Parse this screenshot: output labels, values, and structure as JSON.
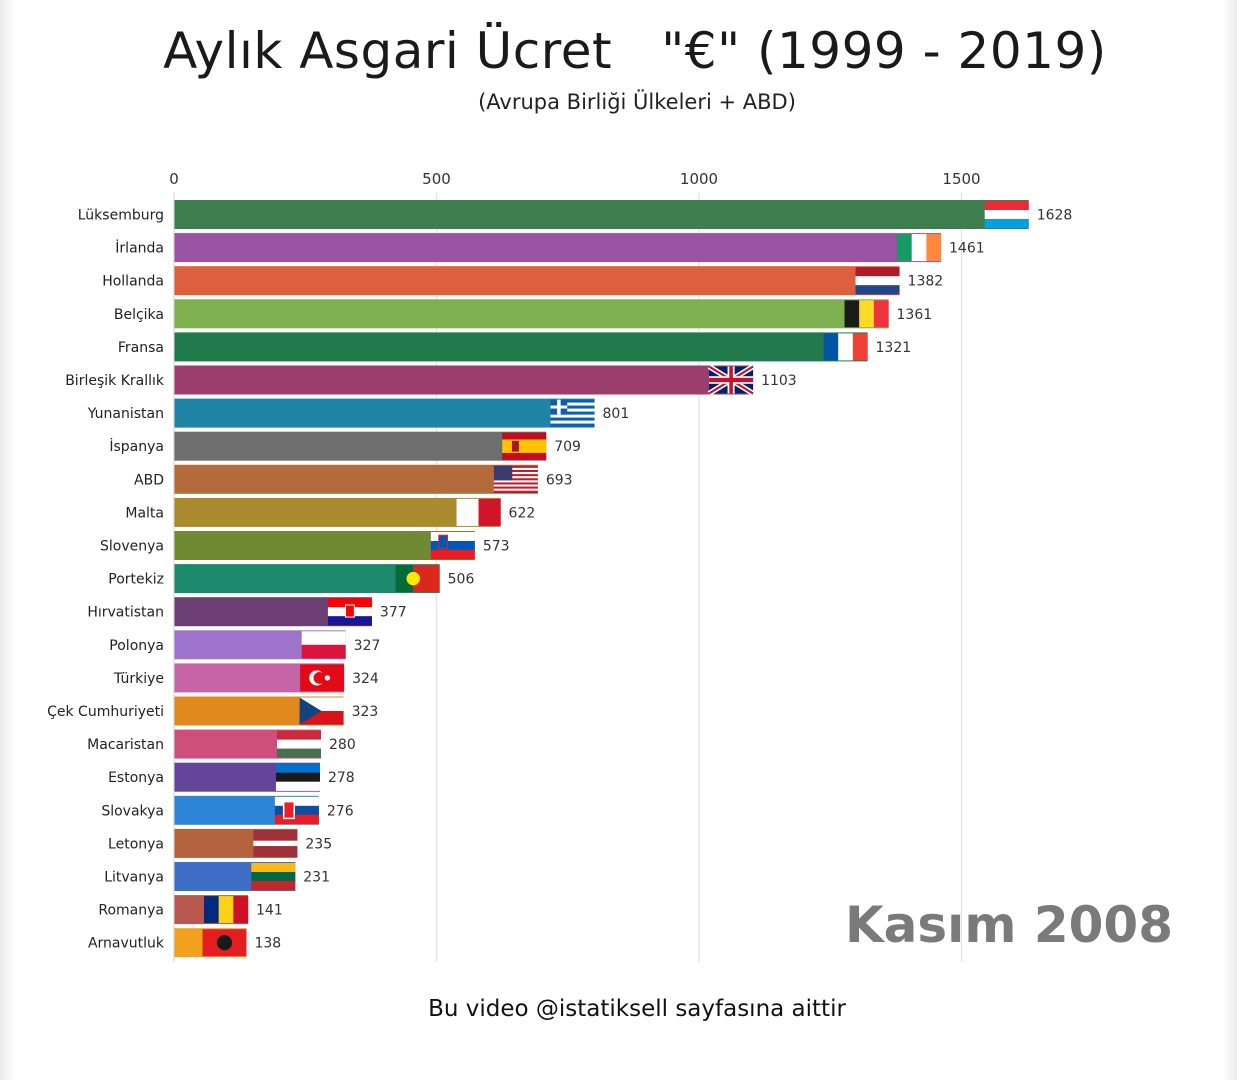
{
  "chart_data": {
    "type": "bar",
    "orientation": "horizontal",
    "title": "Aylık Asgari Ücret   \"€\" (1999 - 2019)",
    "subtitle": "(Avrupa Birliği Ülkeleri + ABD)",
    "period": "Kasım 2008",
    "credit": "Bu video @istatiksell sayfasına aittir",
    "xlim": [
      0,
      1700
    ],
    "xticks": [
      0,
      500,
      1000,
      1500
    ],
    "grid": true,
    "categories": [
      "Lüksemburg",
      "İrlanda",
      "Hollanda",
      "Belçika",
      "Fransa",
      "Birleşik Krallık",
      "Yunanistan",
      "İspanya",
      "ABD",
      "Malta",
      "Slovenya",
      "Portekiz",
      "Hırvatistan",
      "Polonya",
      "Türkiye",
      "Çek Cumhuriyeti",
      "Macaristan",
      "Estonya",
      "Slovakya",
      "Letonya",
      "Litvanya",
      "Romanya",
      "Arnavutluk"
    ],
    "values": [
      1628,
      1461,
      1382,
      1361,
      1321,
      1103,
      801,
      709,
      693,
      622,
      573,
      506,
      377,
      327,
      324,
      323,
      280,
      278,
      276,
      235,
      231,
      141,
      138
    ],
    "colors": [
      "#3e7d4e",
      "#9b54a3",
      "#dd5f3e",
      "#7fb04f",
      "#217a4c",
      "#9b3e6e",
      "#1f84a6",
      "#6e6e6e",
      "#b46a3a",
      "#a98a2d",
      "#6f8a33",
      "#1c8a6a",
      "#6b3f73",
      "#9d73cc",
      "#c564a7",
      "#e08a1e",
      "#cf4f7c",
      "#64459a",
      "#2e84d6",
      "#b5633f",
      "#3f6ec6",
      "#b8584f",
      "#f0a21d"
    ],
    "flags": [
      "luxembourg-flag",
      "ireland-flag",
      "netherlands-flag",
      "belgium-flag",
      "france-flag",
      "uk-flag",
      "greece-flag",
      "spain-flag",
      "usa-flag",
      "malta-flag",
      "slovenia-flag",
      "portugal-flag",
      "croatia-flag",
      "poland-flag",
      "turkey-flag",
      "czech-flag",
      "hungary-flag",
      "estonia-flag",
      "slovakia-flag",
      "latvia-flag",
      "lithuania-flag",
      "romania-flag",
      "albania-flag"
    ]
  }
}
